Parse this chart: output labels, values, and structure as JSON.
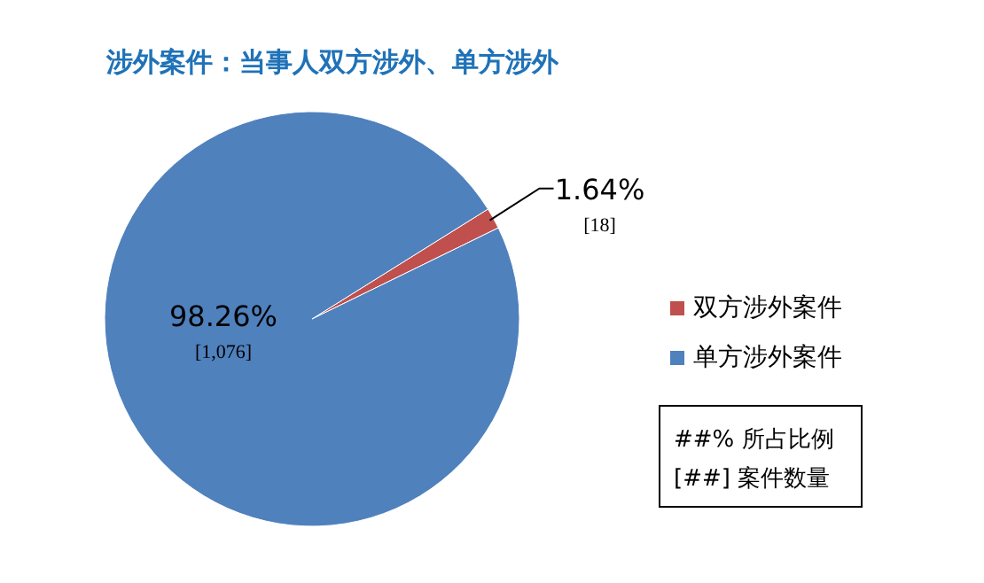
{
  "chart_data": {
    "type": "pie",
    "title": "涉外案件：当事人双方涉外、单方涉外",
    "categories": [
      "双方涉外案件",
      "单方涉外案件"
    ],
    "values": [
      18,
      1076
    ],
    "colors": [
      "#c0504d",
      "#4f81bd"
    ],
    "value_labels": [
      "1.64%\n[18]",
      "98.26%\n[1,076]"
    ],
    "legend": "right",
    "annotations": [
      "##% 所占比例",
      "[##] 案件数量"
    ]
  }
}
